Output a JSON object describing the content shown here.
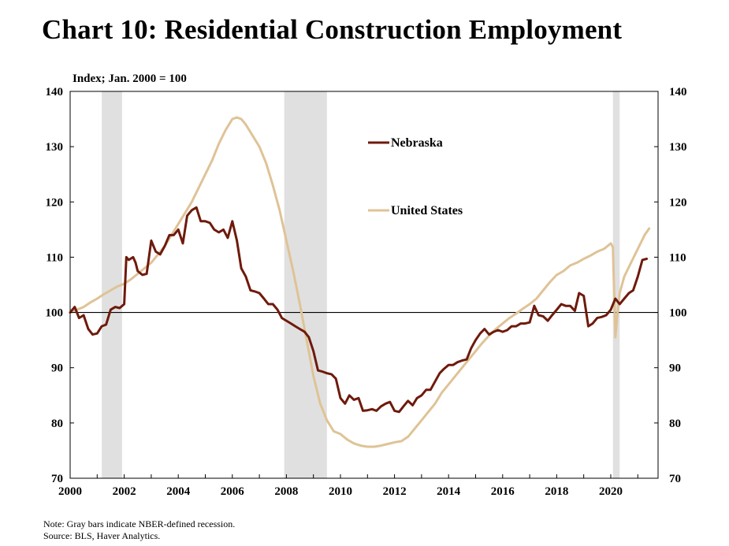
{
  "chart_data": {
    "type": "line",
    "title": "Chart 10: Residential Construction Employment",
    "ylabel": "Index; Jan. 2000 = 100",
    "xlim": [
      2000,
      2021.75
    ],
    "ylim": [
      70,
      140
    ],
    "yticks": [
      70,
      80,
      90,
      100,
      110,
      120,
      130,
      140
    ],
    "xticks": [
      "2000",
      "2002",
      "2004",
      "2006",
      "2008",
      "2010",
      "2012",
      "2014",
      "2016",
      "2018",
      "2020"
    ],
    "reference_line": 100,
    "recessions": [
      [
        2001.17,
        2001.92
      ],
      [
        2007.92,
        2009.5
      ],
      [
        2020.08,
        2020.33
      ]
    ],
    "legend": "inside, upper middle",
    "colors": {
      "Nebraska": "#6e1a0c",
      "United States": "#dfc396",
      "recession": "#e0e0e0"
    },
    "series": [
      {
        "name": "Nebraska",
        "x": [
          2000.0,
          2000.17,
          2000.33,
          2000.5,
          2000.67,
          2000.83,
          2001.0,
          2001.17,
          2001.33,
          2001.5,
          2001.67,
          2001.83,
          2002.0,
          2002.08,
          2002.17,
          2002.33,
          2002.42,
          2002.5,
          2002.67,
          2002.83,
          2003.0,
          2003.17,
          2003.33,
          2003.5,
          2003.67,
          2003.83,
          2004.0,
          2004.17,
          2004.33,
          2004.5,
          2004.67,
          2004.83,
          2005.0,
          2005.17,
          2005.33,
          2005.5,
          2005.67,
          2005.83,
          2006.0,
          2006.17,
          2006.33,
          2006.5,
          2006.67,
          2006.83,
          2007.0,
          2007.17,
          2007.33,
          2007.5,
          2007.67,
          2007.83,
          2008.0,
          2008.17,
          2008.33,
          2008.5,
          2008.67,
          2008.83,
          2009.0,
          2009.17,
          2009.33,
          2009.5,
          2009.67,
          2009.83,
          2010.0,
          2010.17,
          2010.33,
          2010.5,
          2010.67,
          2010.83,
          2011.0,
          2011.17,
          2011.33,
          2011.5,
          2011.67,
          2011.83,
          2012.0,
          2012.17,
          2012.33,
          2012.5,
          2012.67,
          2012.83,
          2013.0,
          2013.17,
          2013.33,
          2013.5,
          2013.67,
          2013.83,
          2014.0,
          2014.17,
          2014.33,
          2014.5,
          2014.67,
          2014.83,
          2015.0,
          2015.17,
          2015.33,
          2015.5,
          2015.67,
          2015.83,
          2016.0,
          2016.17,
          2016.33,
          2016.5,
          2016.67,
          2016.83,
          2017.0,
          2017.17,
          2017.33,
          2017.5,
          2017.67,
          2017.83,
          2018.0,
          2018.17,
          2018.33,
          2018.5,
          2018.67,
          2018.83,
          2019.0,
          2019.17,
          2019.33,
          2019.5,
          2019.67,
          2019.83,
          2020.0,
          2020.17,
          2020.33,
          2020.5,
          2020.67,
          2020.83,
          2021.0,
          2021.17,
          2021.33
        ],
        "values": [
          100,
          101,
          99,
          99.5,
          97,
          96,
          96.2,
          97.5,
          97.8,
          100.5,
          101,
          100.8,
          101.5,
          110,
          109.5,
          110,
          109,
          107.5,
          106.8,
          107,
          113,
          111,
          110.5,
          112,
          114,
          114,
          115,
          112.5,
          117.5,
          118.5,
          119,
          116.5,
          116.5,
          116.2,
          115,
          114.5,
          115,
          113.5,
          116.5,
          113,
          108,
          106.5,
          104,
          103.8,
          103.5,
          102.5,
          101.5,
          101.5,
          100.5,
          99,
          98.5,
          98,
          97.5,
          97,
          96.5,
          95.5,
          93,
          89.5,
          89.3,
          89,
          88.8,
          88,
          84.5,
          83.5,
          85,
          84.2,
          84.5,
          82.2,
          82.3,
          82.5,
          82.2,
          83,
          83.5,
          83.8,
          82.2,
          82,
          83,
          84,
          83.2,
          84.5,
          85,
          86,
          86,
          87.5,
          89,
          89.8,
          90.5,
          90.5,
          91,
          91.3,
          91.5,
          93.5,
          95,
          96.2,
          97,
          96,
          96.5,
          96.8,
          96.5,
          96.8,
          97.5,
          97.5,
          98,
          98,
          98.2,
          101.2,
          99.5,
          99.3,
          98.5,
          99.5,
          100.5,
          101.5,
          101.2,
          101.2,
          100.3,
          103.5,
          103,
          97.5,
          98,
          99,
          99.2,
          99.5,
          100.5,
          102.5,
          101.5,
          102.5,
          103.5,
          104,
          106.5,
          109.5,
          109.7
        ]
      },
      {
        "name": "United States",
        "x": [
          2000.0,
          2000.25,
          2000.5,
          2000.75,
          2001.0,
          2001.25,
          2001.5,
          2001.75,
          2002.0,
          2002.25,
          2002.5,
          2002.75,
          2003.0,
          2003.25,
          2003.5,
          2003.75,
          2004.0,
          2004.25,
          2004.5,
          2004.75,
          2005.0,
          2005.25,
          2005.5,
          2005.75,
          2006.0,
          2006.17,
          2006.33,
          2006.5,
          2006.75,
          2007.0,
          2007.25,
          2007.5,
          2007.75,
          2008.0,
          2008.25,
          2008.5,
          2008.75,
          2009.0,
          2009.25,
          2009.5,
          2009.75,
          2010.0,
          2010.25,
          2010.5,
          2010.75,
          2011.0,
          2011.25,
          2011.5,
          2011.75,
          2012.0,
          2012.25,
          2012.5,
          2012.75,
          2013.0,
          2013.25,
          2013.5,
          2013.75,
          2014.0,
          2014.25,
          2014.5,
          2014.75,
          2015.0,
          2015.25,
          2015.5,
          2015.75,
          2016.0,
          2016.25,
          2016.5,
          2016.75,
          2017.0,
          2017.25,
          2017.5,
          2017.75,
          2018.0,
          2018.25,
          2018.5,
          2018.75,
          2019.0,
          2019.25,
          2019.5,
          2019.75,
          2020.0,
          2020.08,
          2020.17,
          2020.25,
          2020.33,
          2020.5,
          2020.75,
          2021.0,
          2021.25,
          2021.42
        ],
        "values": [
          100,
          100.5,
          101,
          101.8,
          102.5,
          103.3,
          104,
          104.7,
          105.2,
          106,
          107,
          108,
          109,
          110.5,
          112,
          114,
          116,
          118,
          120,
          122.5,
          125,
          127.5,
          130.5,
          133,
          135,
          135.3,
          135,
          134,
          132,
          130,
          127,
          123,
          118.5,
          113,
          107.5,
          101.5,
          95,
          88.5,
          83.5,
          80.5,
          78.5,
          78,
          77,
          76.3,
          75.9,
          75.7,
          75.7,
          75.9,
          76.2,
          76.5,
          76.7,
          77.5,
          79,
          80.5,
          82,
          83.5,
          85.5,
          87,
          88.5,
          90,
          91.5,
          93,
          94.5,
          95.8,
          97,
          98,
          99,
          99.8,
          100.7,
          101.5,
          102.5,
          104,
          105.5,
          106.8,
          107.5,
          108.5,
          109,
          109.7,
          110.3,
          111,
          111.5,
          112.5,
          111.8,
          95.5,
          100,
          103.5,
          106.5,
          109,
          111.5,
          114,
          115.2
        ]
      }
    ]
  },
  "notes": {
    "note": "Note: Gray bars indicate NBER-defined recession.",
    "source": "Source: BLS, Haver Analytics."
  }
}
